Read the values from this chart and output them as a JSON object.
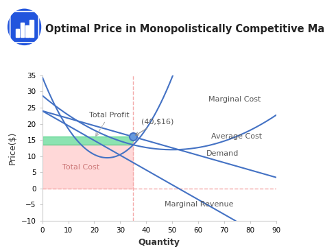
{
  "title": "Optimal Price in Monopolistically Competitive Markets",
  "xlabel": "Quantity",
  "ylabel": "Price($)",
  "xlim": [
    0,
    90
  ],
  "ylim": [
    -10,
    35
  ],
  "xticks": [
    0,
    10,
    20,
    30,
    40,
    50,
    60,
    70,
    80,
    90
  ],
  "yticks": [
    -10,
    -5,
    0,
    5,
    10,
    15,
    20,
    25,
    30,
    35
  ],
  "line_color": "#4472C4",
  "dashed_line_color": "#F4AAAA",
  "profit_fill_color": "#2ECC71",
  "cost_fill_color": "#FFCCCC",
  "bg_color": "#FFFFFF",
  "opt_q": 35,
  "opt_p": 16,
  "opt_ac": 13.5,
  "title_fontsize": 10.5,
  "axis_label_fontsize": 9,
  "tick_fontsize": 7.5,
  "annotation_fontsize": 8,
  "label_color": "#555555"
}
